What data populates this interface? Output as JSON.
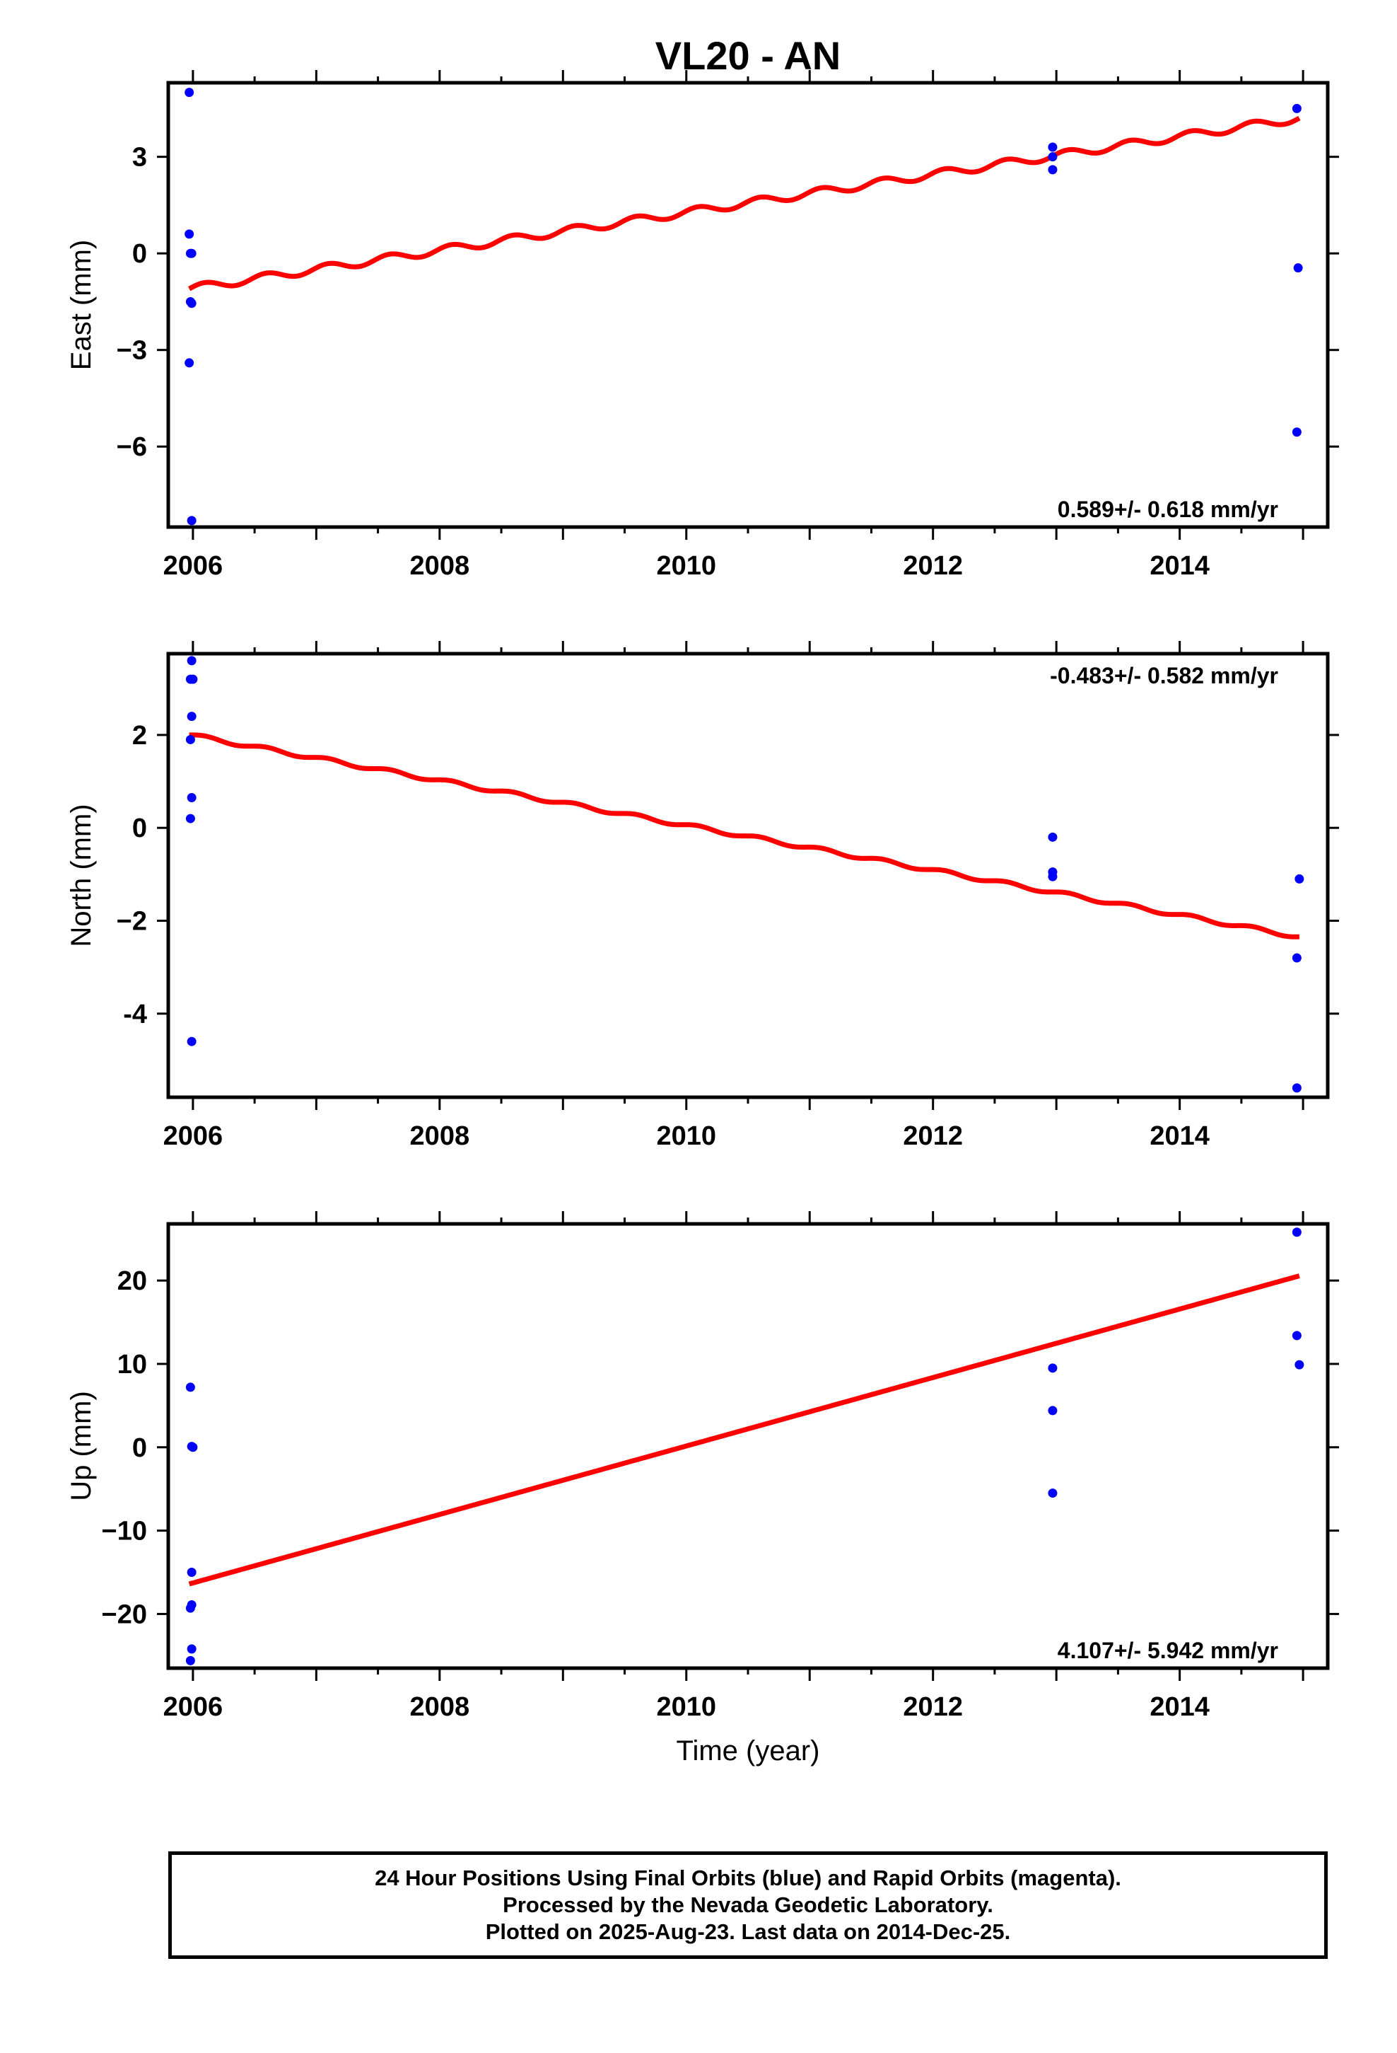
{
  "title": "VL20 - AN",
  "colors": {
    "points": "#0000ff",
    "trend": "#ff0000",
    "frame": "#000000"
  },
  "chart_data": [
    {
      "type": "scatter",
      "component": "east",
      "ylabel": "East (mm)",
      "xlabel": "",
      "xlim": [
        2005.8,
        2015.2
      ],
      "ylim": [
        -8.5,
        5.3
      ],
      "x_ticks": [
        2006,
        2008,
        2010,
        2012,
        2014
      ],
      "y_ticks": [
        3,
        0,
        -3,
        -6
      ],
      "y_tick_labels": [
        "3",
        "0",
        "−3",
        "−6"
      ],
      "rate_label": "0.589+/- 0.618 mm/yr",
      "rate_position": "bottom-right",
      "series": [
        {
          "kind": "points",
          "color": "#0000ff",
          "points": [
            [
              2005.97,
              5.0
            ],
            [
              2005.97,
              0.6
            ],
            [
              2005.98,
              0.0
            ],
            [
              2005.99,
              0.0
            ],
            [
              2005.98,
              -1.5
            ],
            [
              2005.99,
              -1.55
            ],
            [
              2005.97,
              -3.4
            ],
            [
              2005.99,
              -8.3
            ],
            [
              2012.97,
              3.3
            ],
            [
              2012.97,
              3.0
            ],
            [
              2012.97,
              2.6
            ],
            [
              2014.95,
              4.5
            ],
            [
              2014.96,
              -0.45
            ],
            [
              2014.95,
              -5.55
            ]
          ]
        },
        {
          "kind": "trend",
          "color": "#ff0000",
          "x_range": [
            2005.97,
            2014.97
          ],
          "slope": 0.589,
          "intercept_at_start": -1.1,
          "seasonal_amplitude": 0.12
        }
      ]
    },
    {
      "type": "scatter",
      "component": "north",
      "ylabel": "North (mm)",
      "xlabel": "",
      "xlim": [
        2005.8,
        2015.2
      ],
      "ylim": [
        -5.8,
        3.75
      ],
      "x_ticks": [
        2006,
        2008,
        2010,
        2012,
        2014
      ],
      "y_ticks": [
        2,
        0,
        -2,
        -4
      ],
      "y_tick_labels": [
        "2",
        "0",
        "−2",
        "-4"
      ],
      "rate_label": "-0.483+/- 0.582 mm/yr",
      "rate_position": "top-right",
      "series": [
        {
          "kind": "points",
          "color": "#0000ff",
          "points": [
            [
              2005.99,
              3.6
            ],
            [
              2005.98,
              3.2
            ],
            [
              2006.0,
              3.2
            ],
            [
              2005.99,
              2.4
            ],
            [
              2005.98,
              1.9
            ],
            [
              2005.99,
              0.65
            ],
            [
              2005.98,
              0.2
            ],
            [
              2005.99,
              -4.6
            ],
            [
              2012.97,
              -0.2
            ],
            [
              2012.97,
              -0.95
            ],
            [
              2012.97,
              -1.05
            ],
            [
              2014.97,
              -1.1
            ],
            [
              2014.95,
              -2.8
            ],
            [
              2014.95,
              -5.6
            ]
          ]
        },
        {
          "kind": "trend",
          "color": "#ff0000",
          "x_range": [
            2005.97,
            2014.97
          ],
          "slope": -0.483,
          "intercept_at_start": 2.0,
          "seasonal_amplitude": 0.04
        }
      ]
    },
    {
      "type": "scatter",
      "component": "up",
      "ylabel": "Up (mm)",
      "xlabel": "Time (year)",
      "xlim": [
        2005.8,
        2015.2
      ],
      "ylim": [
        -26.5,
        26.8
      ],
      "x_ticks": [
        2006,
        2008,
        2010,
        2012,
        2014
      ],
      "y_ticks": [
        20,
        10,
        0,
        -10,
        -20
      ],
      "y_tick_labels": [
        "20",
        "10",
        "0",
        "−10",
        "−20"
      ],
      "rate_label": "4.107+/- 5.942 mm/yr",
      "rate_position": "bottom-right",
      "series": [
        {
          "kind": "points",
          "color": "#0000ff",
          "points": [
            [
              2005.98,
              7.2
            ],
            [
              2005.99,
              0.1
            ],
            [
              2006.0,
              0.0
            ],
            [
              2005.99,
              -15.0
            ],
            [
              2005.99,
              -18.9
            ],
            [
              2005.98,
              -19.3
            ],
            [
              2005.99,
              -24.2
            ],
            [
              2005.98,
              -25.6
            ],
            [
              2012.97,
              9.5
            ],
            [
              2012.97,
              4.4
            ],
            [
              2012.97,
              -5.5
            ],
            [
              2014.95,
              25.8
            ],
            [
              2014.95,
              13.4
            ],
            [
              2014.97,
              9.9
            ]
          ]
        },
        {
          "kind": "trend",
          "color": "#ff0000",
          "x_range": [
            2005.97,
            2014.97
          ],
          "slope": 4.107,
          "intercept_at_start": -16.4,
          "seasonal_amplitude": 0.0
        }
      ]
    }
  ],
  "footer": {
    "line1": "24 Hour Positions Using Final Orbits (blue) and Rapid Orbits (magenta).",
    "line2": "Processed by the Nevada Geodetic Laboratory.",
    "line3": "Plotted on 2025-Aug-23. Last data on 2014-Dec-25."
  }
}
